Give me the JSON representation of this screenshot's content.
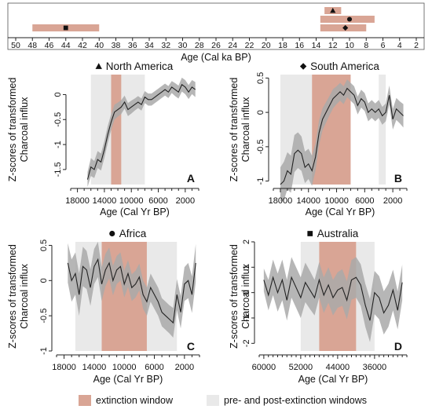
{
  "colors": {
    "extinction": "#d9a595",
    "prepost": "#e9e9e9",
    "band": "#a9a9a9",
    "line": "#222222"
  },
  "timeline": {
    "xlabel": "Age (Cal ka BP)",
    "ticks": [
      50,
      48,
      46,
      44,
      42,
      40,
      38,
      36,
      34,
      32,
      30,
      28,
      26,
      24,
      22,
      20,
      18,
      16,
      14,
      12,
      10,
      8,
      6,
      4,
      2
    ],
    "ranges": [
      {
        "from": 48,
        "to": 40,
        "marker": "square",
        "row": 2
      },
      {
        "from": 13,
        "to": 11,
        "marker": "triangle",
        "row": 0
      },
      {
        "from": 13.5,
        "to": 7,
        "marker": "circle",
        "row": 1
      },
      {
        "from": 13.5,
        "to": 8,
        "marker": "diamond",
        "row": 2
      }
    ],
    "marker_ages": {
      "square": 44,
      "triangle": 12,
      "circle": 10,
      "diamond": 10.5
    }
  },
  "legend": {
    "extinction_label": "extinction window",
    "prepost_label": "pre- and post-extinction windows"
  },
  "chart_data": [
    {
      "type": "line",
      "title": "North America",
      "marker": "triangle",
      "panel_letter": "A",
      "ylabel": "Z-scores of transformed Charcoal influx",
      "xlabel": "Age (Cal Yr BP)",
      "xlim": [
        19000,
        0
      ],
      "ylim": [
        -1.8,
        0.4
      ],
      "xticks": [
        18000,
        14000,
        10000,
        6000,
        2000
      ],
      "yticks": [
        0.0,
        -0.5,
        -1.0,
        -1.5
      ],
      "prepost": [
        [
          16000,
          8000
        ]
      ],
      "extinction": [
        [
          13000,
          11500
        ]
      ],
      "x": [
        16500,
        16000,
        15500,
        15000,
        14500,
        14000,
        13500,
        13000,
        12500,
        12000,
        11500,
        11000,
        10500,
        10000,
        9500,
        9000,
        8500,
        8000,
        7500,
        7000,
        6500,
        6000,
        5500,
        5000,
        4500,
        4000,
        3500,
        3000,
        2500,
        2000,
        1500,
        1000,
        500
      ],
      "y": [
        -1.7,
        -1.45,
        -1.5,
        -1.3,
        -1.35,
        -1.1,
        -0.8,
        -0.55,
        -0.35,
        -0.3,
        -0.25,
        -0.15,
        -0.3,
        -0.25,
        -0.2,
        -0.15,
        -0.2,
        -0.05,
        -0.1,
        -0.1,
        -0.05,
        0.0,
        0.05,
        0.1,
        0.05,
        0.15,
        0.1,
        0.05,
        0.2,
        0.15,
        0.05,
        0.15,
        0.1
      ],
      "band": [
        0.15,
        0.18,
        0.17,
        0.17,
        0.17,
        0.17,
        0.17,
        0.16,
        0.15,
        0.14,
        0.14,
        0.13,
        0.13,
        0.13,
        0.12,
        0.12,
        0.12,
        0.12,
        0.12,
        0.12,
        0.12,
        0.12,
        0.12,
        0.12,
        0.12,
        0.12,
        0.13,
        0.13,
        0.14,
        0.14,
        0.14,
        0.14,
        0.15
      ]
    },
    {
      "type": "line",
      "title": "South America",
      "marker": "diamond",
      "panel_letter": "B",
      "ylabel": "Z-scores of transformed Charcoal influx",
      "xlabel": "Age (Cal Yr BP)",
      "xlim": [
        19000,
        0
      ],
      "ylim": [
        -1.05,
        0.55
      ],
      "xticks": [
        18000,
        14000,
        10000,
        6000,
        2000
      ],
      "yticks": [
        0.5,
        0.0,
        -0.5,
        -1.0
      ],
      "prepost": [
        [
          18000,
          13500
        ],
        [
          4000,
          3000
        ]
      ],
      "extinction": [
        [
          13500,
          8000
        ]
      ],
      "x": [
        18000,
        17500,
        17000,
        16500,
        16000,
        15500,
        15000,
        14500,
        14000,
        13500,
        13000,
        12500,
        12000,
        11500,
        11000,
        10500,
        10000,
        9500,
        9000,
        8500,
        8000,
        7500,
        7000,
        6500,
        6000,
        5500,
        5000,
        4500,
        4000,
        3500,
        3000,
        2500,
        2000,
        1500,
        1000,
        500
      ],
      "y": [
        -1.05,
        -1.0,
        -0.85,
        -0.9,
        -0.6,
        -0.55,
        -0.6,
        -0.8,
        -0.75,
        -0.85,
        -0.65,
        -0.3,
        -0.1,
        0.0,
        0.1,
        0.2,
        0.25,
        0.3,
        0.25,
        0.35,
        0.3,
        0.25,
        0.1,
        0.2,
        0.15,
        0.0,
        0.05,
        0.0,
        0.05,
        -0.05,
        0.0,
        0.25,
        -0.1,
        0.05,
        0.0,
        -0.05
      ],
      "band": [
        0.25,
        0.28,
        0.27,
        0.27,
        0.27,
        0.26,
        0.25,
        0.23,
        0.22,
        0.22,
        0.2,
        0.18,
        0.16,
        0.15,
        0.14,
        0.14,
        0.13,
        0.13,
        0.13,
        0.13,
        0.13,
        0.13,
        0.13,
        0.13,
        0.13,
        0.13,
        0.13,
        0.13,
        0.13,
        0.13,
        0.13,
        0.14,
        0.15,
        0.16,
        0.16,
        0.17
      ]
    },
    {
      "type": "line",
      "title": "Africa",
      "marker": "circle",
      "panel_letter": "C",
      "ylabel": "Z-scores of transformed Charcoal influx",
      "xlabel": "Age (Cal Yr BP)",
      "xlim": [
        19000,
        0
      ],
      "ylim": [
        -1.0,
        0.55
      ],
      "xticks": [
        18000,
        14000,
        10000,
        6000,
        2000
      ],
      "yticks": [
        0.5,
        0.0,
        -0.5,
        -1.0
      ],
      "prepost": [
        [
          16500,
          13000
        ],
        [
          7000,
          3000
        ]
      ],
      "extinction": [
        [
          13000,
          7000
        ]
      ],
      "x": [
        17500,
        17000,
        16500,
        16000,
        15500,
        15000,
        14500,
        14000,
        13500,
        13000,
        12500,
        12000,
        11500,
        11000,
        10500,
        10000,
        9500,
        9000,
        8500,
        8000,
        7500,
        7000,
        6500,
        6000,
        5500,
        5000,
        4500,
        4000,
        3500,
        3000,
        2500,
        2000,
        1500,
        1000,
        500
      ],
      "y": [
        0.25,
        0.0,
        0.1,
        -0.2,
        0.2,
        0.15,
        -0.1,
        0.2,
        0.3,
        -0.05,
        0.15,
        0.25,
        0.0,
        0.15,
        0.2,
        -0.05,
        0.1,
        -0.1,
        -0.05,
        0.05,
        -0.2,
        -0.3,
        -0.1,
        -0.2,
        -0.3,
        -0.45,
        -0.5,
        -0.55,
        -0.6,
        -0.2,
        -0.45,
        -0.05,
        0.0,
        -0.2,
        0.25
      ],
      "band": [
        0.28,
        0.3,
        0.3,
        0.3,
        0.28,
        0.27,
        0.26,
        0.25,
        0.25,
        0.24,
        0.23,
        0.22,
        0.21,
        0.2,
        0.2,
        0.19,
        0.19,
        0.19,
        0.19,
        0.19,
        0.2,
        0.2,
        0.2,
        0.2,
        0.2,
        0.2,
        0.2,
        0.2,
        0.21,
        0.22,
        0.23,
        0.24,
        0.25,
        0.26,
        0.27
      ]
    },
    {
      "type": "line",
      "title": "Australia",
      "marker": "square",
      "panel_letter": "D",
      "ylabel": "Z-scores of transformed Charcoal influx",
      "xlabel": "Age (Cal Yr BP)",
      "xlim": [
        61000,
        29000
      ],
      "ylim": [
        -2.3,
        2.0
      ],
      "xticks": [
        60000,
        52000,
        44000,
        36000
      ],
      "yticks": [
        2,
        1,
        0,
        -1,
        -2
      ],
      "prepost": [
        [
          52000,
          48000
        ],
        [
          40000,
          36000
        ]
      ],
      "extinction": [
        [
          48000,
          40000
        ]
      ],
      "x": [
        60000,
        59000,
        58000,
        57000,
        56000,
        55000,
        54000,
        53000,
        52000,
        51000,
        50000,
        49000,
        48000,
        47000,
        46000,
        45000,
        44000,
        43000,
        42000,
        41000,
        40000,
        39000,
        38000,
        37000,
        36000,
        35000,
        34000,
        33000,
        32000,
        31000,
        30000
      ],
      "y": [
        0.5,
        -0.1,
        0.6,
        0.0,
        0.5,
        -0.3,
        0.6,
        0.2,
        -0.2,
        0.4,
        0.1,
        -0.2,
        0.5,
        -0.1,
        0.3,
        -0.2,
        0.1,
        0.2,
        -0.3,
        0.5,
        0.6,
        0.3,
        -0.5,
        -1.1,
        0.0,
        -0.2,
        -0.8,
        -0.5,
        0.1,
        -0.7,
        0.4
      ],
      "band": [
        0.45,
        0.6,
        0.7,
        0.75,
        0.8,
        0.8,
        0.8,
        0.8,
        0.8,
        0.78,
        0.75,
        0.7,
        0.7,
        0.7,
        0.7,
        0.7,
        0.7,
        0.72,
        0.75,
        0.78,
        0.8,
        0.82,
        0.85,
        0.85,
        0.85,
        0.85,
        0.85,
        0.85,
        0.8,
        0.75,
        0.7
      ]
    }
  ]
}
